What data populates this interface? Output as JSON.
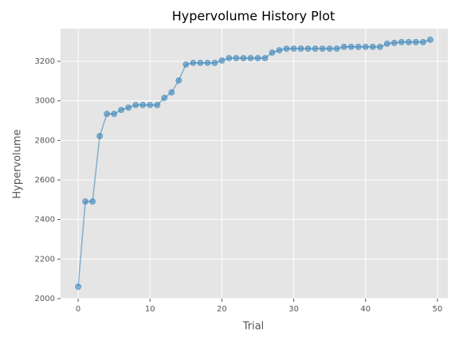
{
  "chart_data": {
    "type": "line",
    "title": "Hypervolume History Plot",
    "x_label": "Trial",
    "y_label": "Hypervolume",
    "x": [
      0,
      1,
      2,
      3,
      4,
      5,
      6,
      7,
      8,
      9,
      10,
      11,
      12,
      13,
      14,
      15,
      16,
      17,
      18,
      19,
      20,
      21,
      22,
      23,
      24,
      25,
      26,
      27,
      28,
      29,
      30,
      31,
      32,
      33,
      34,
      35,
      36,
      37,
      38,
      39,
      40,
      41,
      42,
      43,
      44,
      45,
      46,
      47,
      48,
      49
    ],
    "series": [
      {
        "name": "Hypervolume",
        "color": "#1f77b4",
        "values": [
          2060,
          2491,
          2491,
          2822,
          2934,
          2934,
          2954,
          2966,
          2979,
          2979,
          2979,
          2979,
          3015,
          3043,
          3103,
          3184,
          3192,
          3192,
          3192,
          3192,
          3204,
          3216,
          3216,
          3216,
          3216,
          3216,
          3216,
          3244,
          3256,
          3264,
          3264,
          3264,
          3264,
          3264,
          3264,
          3264,
          3264,
          3273,
          3273,
          3273,
          3273,
          3273,
          3273,
          3289,
          3293,
          3297,
          3297,
          3297,
          3297,
          3309
        ]
      }
    ],
    "xlim": [
      -2.45,
      51.45
    ],
    "ylim": [
      2000,
      3365
    ],
    "xticks": [
      0,
      10,
      20,
      30,
      40,
      50
    ],
    "yticks": [
      2000,
      2200,
      2400,
      2600,
      2800,
      3000,
      3200
    ],
    "grid": true
  }
}
